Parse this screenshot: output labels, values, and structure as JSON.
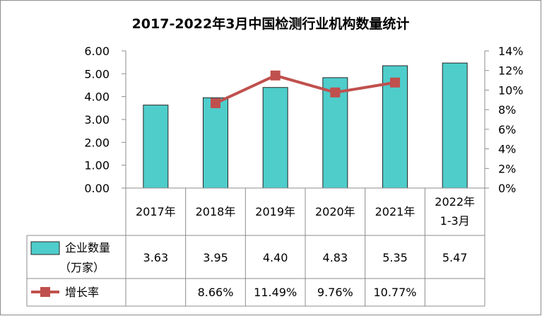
{
  "chart_data": {
    "type": "bar",
    "title": "2017-2022年3月中国检测行业机构数量统计",
    "categories": [
      {
        "line1": "2017年",
        "line2": ""
      },
      {
        "line1": "2018年",
        "line2": ""
      },
      {
        "line1": "2019年",
        "line2": ""
      },
      {
        "line1": "2020年",
        "line2": ""
      },
      {
        "line1": "2021年",
        "line2": ""
      },
      {
        "line1": "2022年",
        "line2": "1-3月"
      }
    ],
    "y_left": {
      "ylim": [
        0,
        6
      ],
      "ticks": [
        "0.00",
        "1.00",
        "2.00",
        "3.00",
        "4.00",
        "5.00",
        "6.00"
      ]
    },
    "y_right": {
      "ylim": [
        0,
        14
      ],
      "ticks": [
        "0%",
        "2%",
        "4%",
        "6%",
        "8%",
        "10%",
        "12%",
        "14%"
      ]
    },
    "series": [
      {
        "name_line1": "企业数量",
        "name_line2": "（万家）",
        "type": "bar",
        "axis": "left",
        "color": "#4ECDCB",
        "values": [
          3.63,
          3.95,
          4.4,
          4.83,
          5.35,
          5.47
        ],
        "labels": [
          "3.63",
          "3.95",
          "4.40",
          "4.83",
          "5.35",
          "5.47"
        ]
      },
      {
        "name_line1": "增长率",
        "name_line2": "",
        "type": "line",
        "axis": "right",
        "color": "#C0504D",
        "values": [
          null,
          8.66,
          11.49,
          9.76,
          10.77,
          null
        ],
        "labels": [
          "",
          "8.66%",
          "11.49%",
          "9.76%",
          "10.77%",
          ""
        ]
      }
    ],
    "grid": false,
    "legend": "data-table"
  }
}
